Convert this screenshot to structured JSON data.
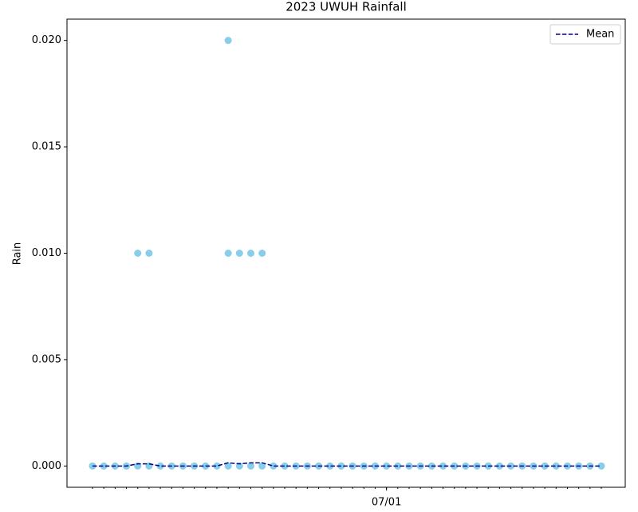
{
  "chart_data": {
    "type": "scatter",
    "title": "2023 UWUH Rainfall",
    "y_label": "Rain",
    "dates": [
      "06/05",
      "06/06",
      "06/07",
      "06/08",
      "06/09",
      "06/10",
      "06/11",
      "06/12",
      "06/13",
      "06/14",
      "06/15",
      "06/16",
      "06/17",
      "06/18",
      "06/19",
      "06/20",
      "06/21",
      "06/22",
      "06/23",
      "06/24",
      "06/25",
      "06/26",
      "06/27",
      "06/28",
      "06/29",
      "06/30",
      "07/01",
      "07/02",
      "07/03",
      "07/04",
      "07/05",
      "07/06",
      "07/07",
      "07/08",
      "07/09",
      "07/10",
      "07/11",
      "07/12",
      "07/13",
      "07/14",
      "07/15",
      "07/16",
      "07/17",
      "07/18",
      "07/19",
      "07/20"
    ],
    "series": [
      {
        "color": "#87ceeb",
        "x": [
          "06/05",
          "06/06",
          "06/07",
          "06/08",
          "06/09",
          "06/10",
          "06/11",
          "06/12",
          "06/13",
          "06/14",
          "06/15",
          "06/16",
          "06/17",
          "06/18",
          "06/19",
          "06/20",
          "06/21",
          "06/22",
          "06/23",
          "06/24",
          "06/25",
          "06/26",
          "06/27",
          "06/28",
          "06/29",
          "06/30",
          "07/01",
          "07/02",
          "07/03",
          "07/04",
          "07/05",
          "07/06",
          "07/07",
          "07/08",
          "07/09",
          "07/10",
          "07/11",
          "07/12",
          "07/13",
          "07/14",
          "07/15",
          "07/16",
          "07/17",
          "07/18",
          "07/19",
          "07/20",
          "06/09",
          "06/10",
          "06/17",
          "06/17",
          "06/18",
          "06/19",
          "06/20"
        ],
        "values": [
          0,
          0,
          0,
          0,
          0,
          0,
          0,
          0,
          0,
          0,
          0,
          0,
          0,
          0,
          0,
          0,
          0,
          0,
          0,
          0,
          0,
          0,
          0,
          0,
          0,
          0,
          0,
          0,
          0,
          0,
          0,
          0,
          0,
          0,
          0,
          0,
          0,
          0,
          0,
          0,
          0,
          0,
          0,
          0,
          0,
          0,
          0.01,
          0.01,
          0.02,
          0.01,
          0.01,
          0.01,
          0.01
        ]
      },
      {
        "name": "Mean",
        "color": "#000080",
        "line": "dashed",
        "values": [
          0,
          0,
          0,
          0,
          0.0001,
          0.0001,
          0,
          0,
          0,
          0,
          0,
          0,
          0.00015,
          0.0001,
          0.00015,
          0.00015,
          0,
          0,
          0,
          0,
          0,
          0,
          0,
          0,
          0,
          0,
          0,
          0,
          0,
          0,
          0,
          0,
          0,
          0,
          0,
          0,
          0,
          0,
          0,
          0,
          0,
          0,
          0,
          0,
          0,
          0
        ]
      }
    ],
    "ylim": [
      -0.001,
      0.021
    ],
    "yticks": [
      {
        "value": 0,
        "label": "0.000"
      },
      {
        "value": 0.005,
        "label": "0.005"
      },
      {
        "value": 0.01,
        "label": "0.010"
      },
      {
        "value": 0.015,
        "label": "0.015"
      },
      {
        "value": 0.02,
        "label": "0.020"
      }
    ],
    "xticks": [
      "07/01"
    ],
    "legend": "upper right"
  }
}
